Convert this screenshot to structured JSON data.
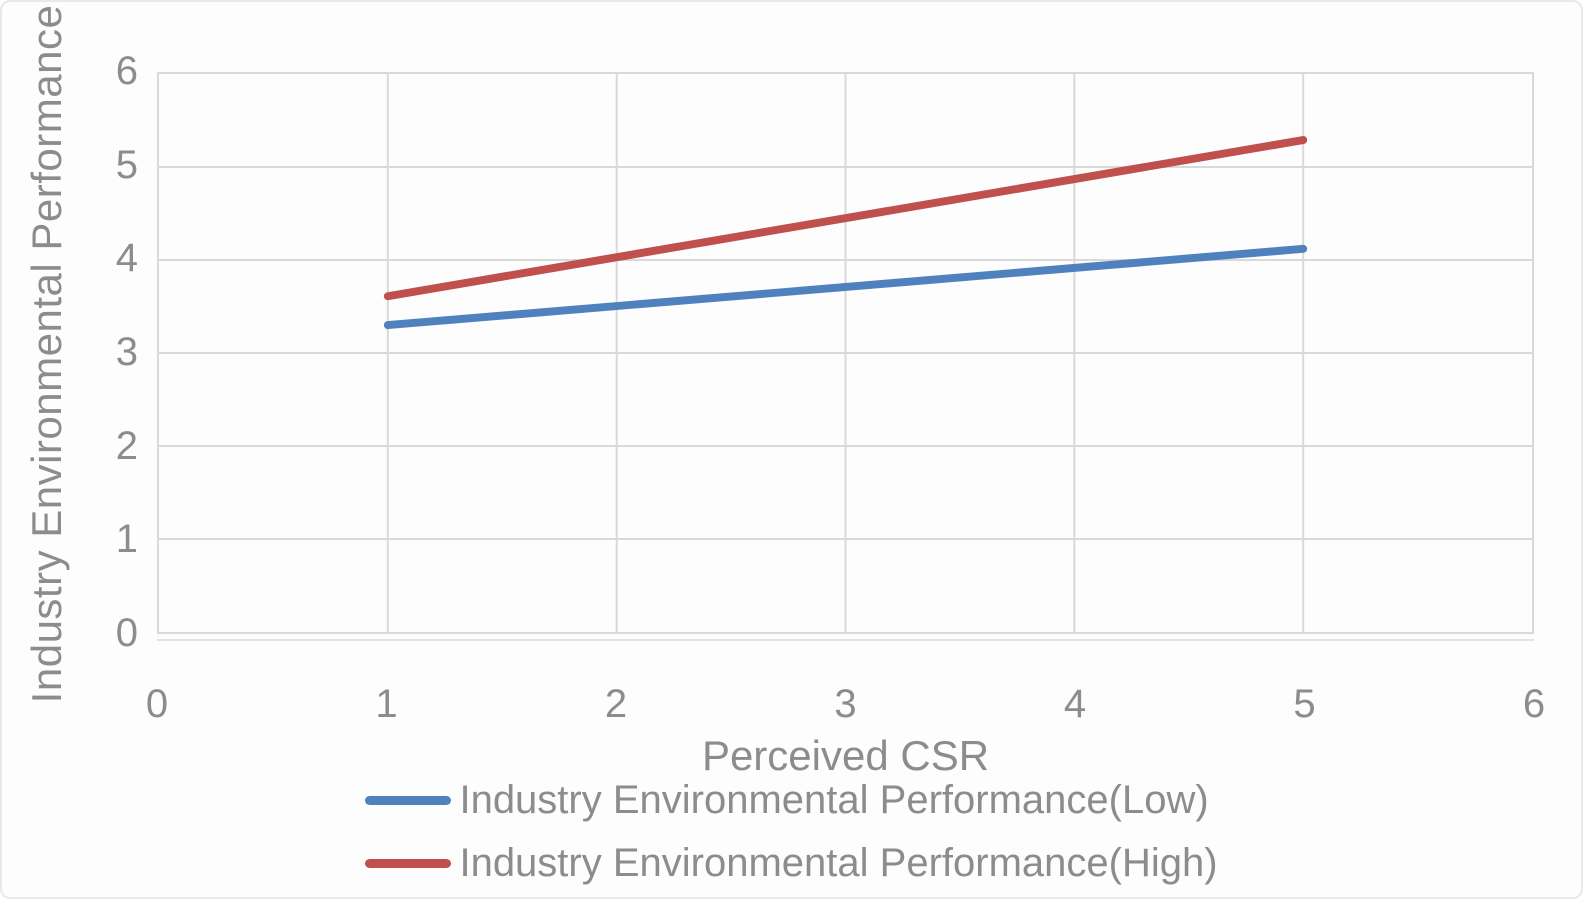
{
  "chart_data": {
    "type": "line",
    "title": "",
    "xlabel": "Perceived CSR",
    "ylabel": "Industry Environmental Performance",
    "xlim": [
      0,
      6
    ],
    "ylim": [
      0,
      6
    ],
    "x_ticks": [
      0,
      1,
      2,
      3,
      4,
      5,
      6
    ],
    "y_ticks": [
      0,
      1,
      2,
      3,
      4,
      5,
      6
    ],
    "grid": true,
    "grid_color": "#d9d9d9",
    "text_color": "#8c8c8c",
    "legend_position": "bottom",
    "series": [
      {
        "name": "Industry Environmental Performance(Low)",
        "color": "#4F81BD",
        "x": [
          1,
          5
        ],
        "values": [
          3.3,
          4.12
        ]
      },
      {
        "name": "Industry Environmental Performance(High)",
        "color": "#C0504D",
        "x": [
          1,
          5
        ],
        "values": [
          3.61,
          5.29
        ]
      }
    ]
  }
}
